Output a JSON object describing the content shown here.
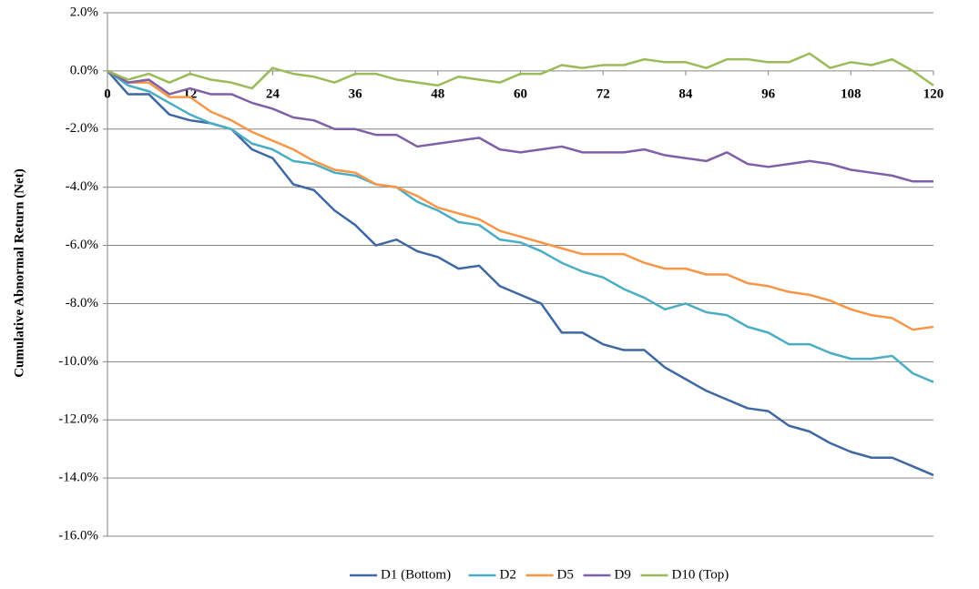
{
  "chart_data": {
    "type": "line",
    "y_axis_label": "Cumulative Abnormal Return (Net)",
    "x": [
      0,
      3,
      6,
      9,
      12,
      15,
      18,
      21,
      24,
      27,
      30,
      33,
      36,
      39,
      42,
      45,
      48,
      51,
      54,
      57,
      60,
      63,
      66,
      69,
      72,
      75,
      78,
      81,
      84,
      87,
      90,
      93,
      96,
      99,
      102,
      105,
      108,
      111,
      114,
      117,
      120
    ],
    "xlim": [
      0,
      120
    ],
    "xticks": [
      0,
      12,
      24,
      36,
      48,
      60,
      72,
      84,
      96,
      108,
      120
    ],
    "ylim": [
      -16,
      2
    ],
    "yticks": [
      {
        "value": -16,
        "label": "-16.0%"
      },
      {
        "value": -14,
        "label": "-14.0%"
      },
      {
        "value": -12,
        "label": "-12.0%"
      },
      {
        "value": -10,
        "label": "-10.0%"
      },
      {
        "value": -8,
        "label": "-8.0%"
      },
      {
        "value": -6,
        "label": "-6.0%"
      },
      {
        "value": -4,
        "label": "-4.0%"
      },
      {
        "value": -2,
        "label": "-2.0%"
      },
      {
        "value": 0,
        "label": "0.0%"
      },
      {
        "value": 2,
        "label": "2.0%"
      }
    ],
    "grid": true,
    "legend": "bottom",
    "series": [
      {
        "name": "D1 (Bottom)",
        "color": "#3f67a3",
        "values": [
          0,
          -0.8,
          -0.8,
          -1.5,
          -1.7,
          -1.8,
          -2.0,
          -2.7,
          -3.0,
          -3.9,
          -4.1,
          -4.8,
          -5.3,
          -6.0,
          -5.8,
          -6.2,
          -6.4,
          -6.8,
          -6.7,
          -7.4,
          -7.7,
          -8.0,
          -9.0,
          -9.0,
          -9.4,
          -9.6,
          -9.6,
          -10.2,
          -10.6,
          -11.0,
          -11.3,
          -11.6,
          -11.7,
          -12.2,
          -12.4,
          -12.8,
          -13.1,
          -13.3,
          -13.3,
          -13.6,
          -13.9
        ]
      },
      {
        "name": "D2",
        "color": "#4bacc6",
        "values": [
          0,
          -0.5,
          -0.7,
          -1.1,
          -1.5,
          -1.8,
          -2.0,
          -2.5,
          -2.7,
          -3.1,
          -3.2,
          -3.5,
          -3.6,
          -3.9,
          -4.0,
          -4.5,
          -4.8,
          -5.2,
          -5.3,
          -5.8,
          -5.9,
          -6.2,
          -6.6,
          -6.9,
          -7.1,
          -7.5,
          -7.8,
          -8.2,
          -8.0,
          -8.3,
          -8.4,
          -8.8,
          -9.0,
          -9.4,
          -9.4,
          -9.7,
          -9.9,
          -9.9,
          -9.8,
          -10.4,
          -10.7
        ]
      },
      {
        "name": "D5",
        "color": "#f79646",
        "values": [
          0,
          -0.4,
          -0.4,
          -0.9,
          -0.9,
          -1.4,
          -1.7,
          -2.1,
          -2.4,
          -2.7,
          -3.1,
          -3.4,
          -3.5,
          -3.9,
          -4.0,
          -4.3,
          -4.7,
          -4.9,
          -5.1,
          -5.5,
          -5.7,
          -5.9,
          -6.1,
          -6.3,
          -6.3,
          -6.3,
          -6.6,
          -6.8,
          -6.8,
          -7.0,
          -7.0,
          -7.3,
          -7.4,
          -7.6,
          -7.7,
          -7.9,
          -8.2,
          -8.4,
          -8.5,
          -8.9,
          -8.8
        ]
      },
      {
        "name": "D9",
        "color": "#7f5fa8",
        "values": [
          0,
          -0.4,
          -0.3,
          -0.8,
          -0.6,
          -0.8,
          -0.8,
          -1.1,
          -1.3,
          -1.6,
          -1.7,
          -2.0,
          -2.0,
          -2.2,
          -2.2,
          -2.6,
          -2.5,
          -2.4,
          -2.3,
          -2.7,
          -2.8,
          -2.7,
          -2.6,
          -2.8,
          -2.8,
          -2.8,
          -2.7,
          -2.9,
          -3.0,
          -3.1,
          -2.8,
          -3.2,
          -3.3,
          -3.2,
          -3.1,
          -3.2,
          -3.4,
          -3.5,
          -3.6,
          -3.8,
          -3.8
        ]
      },
      {
        "name": "D10 (Top)",
        "color": "#9bbb59",
        "values": [
          0,
          -0.3,
          -0.1,
          -0.4,
          -0.1,
          -0.3,
          -0.4,
          -0.6,
          0.1,
          -0.1,
          -0.2,
          -0.4,
          -0.1,
          -0.1,
          -0.3,
          -0.4,
          -0.5,
          -0.2,
          -0.3,
          -0.4,
          -0.1,
          -0.1,
          0.2,
          0.1,
          0.2,
          0.2,
          0.4,
          0.3,
          0.3,
          0.1,
          0.4,
          0.4,
          0.3,
          0.3,
          0.6,
          0.1,
          0.3,
          0.2,
          0.4,
          0.0,
          -0.5
        ]
      }
    ]
  }
}
